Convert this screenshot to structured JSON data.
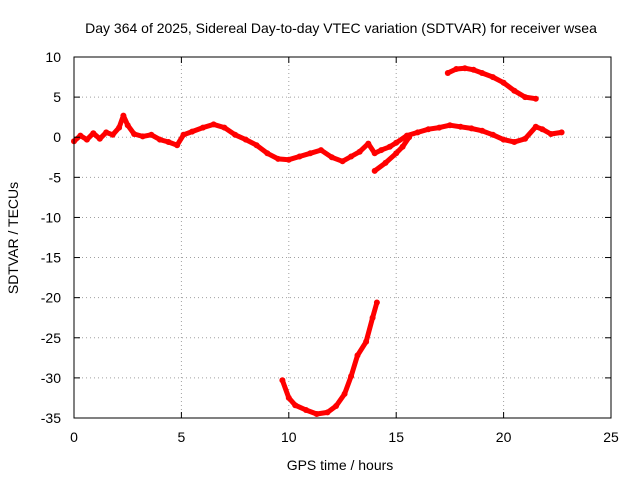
{
  "chart_data": {
    "type": "scatter",
    "title": "Day 364 of 2025, Sidereal Day-to-day VTEC variation (SDTVAR) for receiver wsea",
    "xlabel": "GPS time / hours",
    "ylabel": "SDTVAR / TECUs",
    "xlim": [
      0,
      25
    ],
    "ylim": [
      -35,
      10
    ],
    "xticks": [
      0,
      5,
      10,
      15,
      20,
      25
    ],
    "yticks": [
      10,
      5,
      0,
      -5,
      -10,
      -15,
      -20,
      -25,
      -30,
      -35
    ],
    "grid": true,
    "color": "#ff0000",
    "series": [
      {
        "name": "main trace",
        "points": [
          [
            0.0,
            -0.5
          ],
          [
            0.3,
            0.2
          ],
          [
            0.6,
            -0.3
          ],
          [
            0.9,
            0.5
          ],
          [
            1.2,
            -0.2
          ],
          [
            1.5,
            0.6
          ],
          [
            1.8,
            0.3
          ],
          [
            2.1,
            1.2
          ],
          [
            2.3,
            2.7
          ],
          [
            2.5,
            1.5
          ],
          [
            2.8,
            0.4
          ],
          [
            3.2,
            0.1
          ],
          [
            3.6,
            0.3
          ],
          [
            4.0,
            -0.3
          ],
          [
            4.4,
            -0.6
          ],
          [
            4.8,
            -1.0
          ],
          [
            5.1,
            0.3
          ],
          [
            5.5,
            0.7
          ],
          [
            6.0,
            1.2
          ],
          [
            6.5,
            1.6
          ],
          [
            7.0,
            1.2
          ],
          [
            7.5,
            0.3
          ],
          [
            8.0,
            -0.3
          ],
          [
            8.5,
            -1.0
          ],
          [
            9.0,
            -2.0
          ],
          [
            9.5,
            -2.7
          ],
          [
            10.0,
            -2.8
          ],
          [
            10.5,
            -2.4
          ],
          [
            11.0,
            -2.0
          ],
          [
            11.5,
            -1.6
          ],
          [
            12.0,
            -2.5
          ],
          [
            12.5,
            -3.0
          ],
          [
            12.9,
            -2.4
          ],
          [
            13.3,
            -1.8
          ],
          [
            13.7,
            -0.8
          ],
          [
            14.0,
            -2.0
          ],
          [
            14.3,
            -1.6
          ],
          [
            14.7,
            -1.2
          ],
          [
            15.0,
            -0.7
          ],
          [
            15.5,
            0.2
          ],
          [
            16.0,
            0.6
          ],
          [
            16.5,
            1.0
          ],
          [
            17.0,
            1.2
          ],
          [
            17.5,
            1.5
          ],
          [
            18.0,
            1.3
          ],
          [
            18.5,
            1.1
          ],
          [
            19.0,
            0.8
          ],
          [
            19.5,
            0.3
          ],
          [
            20.0,
            -0.3
          ],
          [
            20.5,
            -0.6
          ],
          [
            21.0,
            -0.2
          ],
          [
            21.5,
            1.3
          ],
          [
            21.8,
            1.0
          ],
          [
            22.2,
            0.4
          ],
          [
            22.7,
            0.6
          ]
        ]
      },
      {
        "name": "upper arc",
        "points": [
          [
            17.4,
            8.0
          ],
          [
            17.8,
            8.5
          ],
          [
            18.2,
            8.6
          ],
          [
            18.6,
            8.4
          ],
          [
            19.0,
            8.0
          ],
          [
            19.5,
            7.5
          ],
          [
            20.0,
            6.8
          ],
          [
            20.5,
            5.8
          ],
          [
            21.0,
            5.0
          ],
          [
            21.5,
            4.8
          ]
        ]
      },
      {
        "name": "lower dip",
        "points": [
          [
            9.7,
            -30.3
          ],
          [
            10.0,
            -32.5
          ],
          [
            10.3,
            -33.4
          ],
          [
            10.8,
            -34.0
          ],
          [
            11.3,
            -34.5
          ],
          [
            11.8,
            -34.3
          ],
          [
            12.2,
            -33.5
          ],
          [
            12.6,
            -32.0
          ],
          [
            12.9,
            -29.8
          ],
          [
            13.2,
            -27.2
          ],
          [
            13.6,
            -25.5
          ],
          [
            13.9,
            -22.5
          ],
          [
            14.1,
            -20.6
          ]
        ]
      },
      {
        "name": "short segment",
        "points": [
          [
            14.0,
            -4.2
          ],
          [
            14.5,
            -3.2
          ],
          [
            15.0,
            -2.0
          ],
          [
            15.3,
            -1.2
          ],
          [
            15.6,
            0.0
          ]
        ]
      }
    ]
  }
}
